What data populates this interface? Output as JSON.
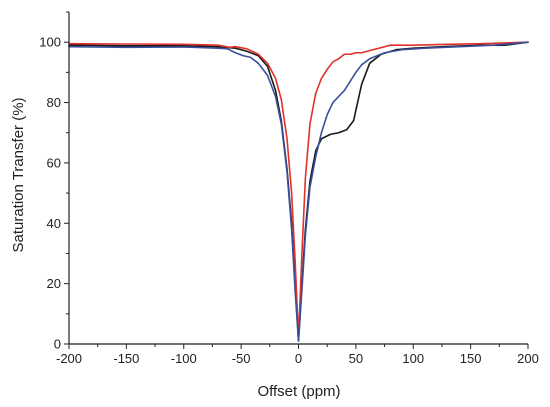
{
  "chart_data": {
    "type": "line",
    "title": "",
    "xlabel": "Offset (ppm)",
    "ylabel": "Saturation Transfer (%)",
    "xlim": [
      -200,
      200
    ],
    "ylim": [
      0,
      110
    ],
    "xticks": [
      -200,
      -150,
      -100,
      -50,
      0,
      50,
      100,
      150,
      200
    ],
    "yticks": [
      0,
      20,
      40,
      60,
      80,
      100
    ],
    "grid": false,
    "legend": "none",
    "series": [
      {
        "color": "#1a1a1a",
        "points": [
          [
            -200,
            99
          ],
          [
            -150,
            98.8
          ],
          [
            -100,
            98.8
          ],
          [
            -70,
            98.5
          ],
          [
            -55,
            98
          ],
          [
            -45,
            97
          ],
          [
            -35,
            95.5
          ],
          [
            -27,
            92
          ],
          [
            -20,
            84
          ],
          [
            -15,
            74
          ],
          [
            -10,
            58
          ],
          [
            -6,
            40
          ],
          [
            -3,
            20
          ],
          [
            0,
            1
          ],
          [
            3,
            20
          ],
          [
            6,
            38
          ],
          [
            10,
            54
          ],
          [
            15,
            64
          ],
          [
            20,
            68
          ],
          [
            28,
            69.5
          ],
          [
            35,
            70
          ],
          [
            42,
            71
          ],
          [
            48,
            74
          ],
          [
            55,
            86
          ],
          [
            62,
            93
          ],
          [
            72,
            96
          ],
          [
            85,
            97.5
          ],
          [
            100,
            98
          ],
          [
            130,
            98.6
          ],
          [
            160,
            99
          ],
          [
            180,
            99
          ],
          [
            200,
            100
          ]
        ]
      },
      {
        "color": "#e0312a",
        "points": [
          [
            -200,
            99.5
          ],
          [
            -150,
            99.4
          ],
          [
            -100,
            99.3
          ],
          [
            -70,
            99
          ],
          [
            -60,
            98.3
          ],
          [
            -55,
            98.5
          ],
          [
            -45,
            97.8
          ],
          [
            -35,
            96
          ],
          [
            -27,
            93
          ],
          [
            -20,
            88
          ],
          [
            -15,
            81
          ],
          [
            -10,
            68
          ],
          [
            -6,
            50
          ],
          [
            -3,
            28
          ],
          [
            0,
            2
          ],
          [
            3,
            30
          ],
          [
            6,
            55
          ],
          [
            10,
            73
          ],
          [
            15,
            83
          ],
          [
            20,
            88
          ],
          [
            25,
            91
          ],
          [
            30,
            93.5
          ],
          [
            35,
            94.5
          ],
          [
            40,
            96
          ],
          [
            45,
            96
          ],
          [
            50,
            96.5
          ],
          [
            55,
            96.5
          ],
          [
            60,
            97
          ],
          [
            70,
            98
          ],
          [
            80,
            99
          ],
          [
            100,
            99
          ],
          [
            130,
            99.3
          ],
          [
            160,
            99.5
          ],
          [
            200,
            100
          ]
        ]
      },
      {
        "color": "#3a4f9a",
        "points": [
          [
            -200,
            98.5
          ],
          [
            -150,
            98.3
          ],
          [
            -100,
            98.4
          ],
          [
            -70,
            98
          ],
          [
            -62,
            97.8
          ],
          [
            -55,
            96.5
          ],
          [
            -48,
            95.5
          ],
          [
            -42,
            95
          ],
          [
            -35,
            93
          ],
          [
            -27,
            89
          ],
          [
            -20,
            82
          ],
          [
            -15,
            73
          ],
          [
            -10,
            57
          ],
          [
            -6,
            38
          ],
          [
            -3,
            18
          ],
          [
            0,
            1
          ],
          [
            3,
            18
          ],
          [
            6,
            36
          ],
          [
            10,
            52
          ],
          [
            15,
            62
          ],
          [
            20,
            70
          ],
          [
            25,
            76
          ],
          [
            30,
            80
          ],
          [
            35,
            82
          ],
          [
            40,
            84
          ],
          [
            45,
            87
          ],
          [
            50,
            90
          ],
          [
            55,
            92.5
          ],
          [
            62,
            94.5
          ],
          [
            75,
            96.5
          ],
          [
            90,
            97.5
          ],
          [
            110,
            98
          ],
          [
            140,
            98.5
          ],
          [
            170,
            99
          ],
          [
            200,
            100
          ]
        ]
      }
    ]
  }
}
